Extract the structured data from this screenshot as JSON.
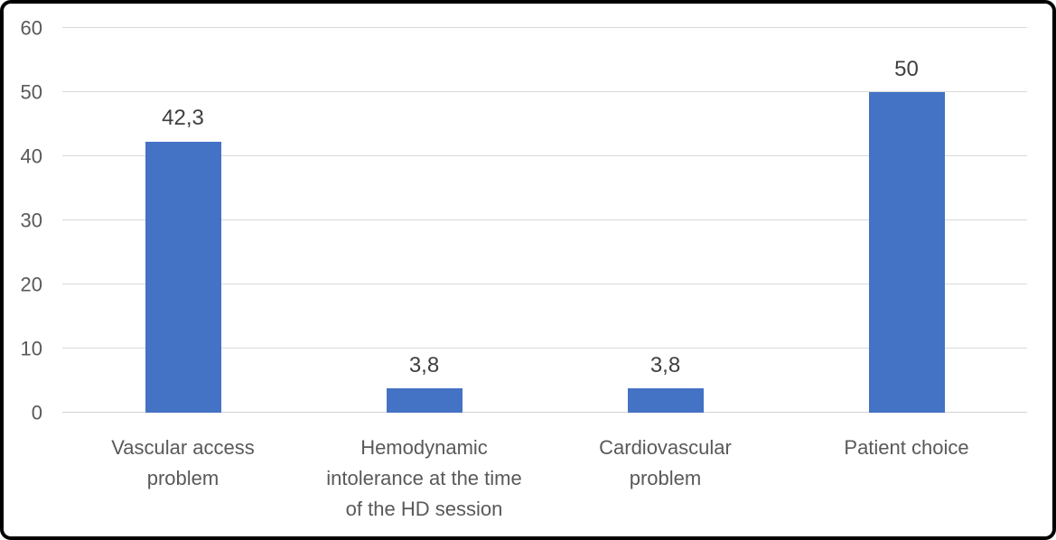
{
  "chart_data": {
    "type": "bar",
    "categories": [
      "Vascular access problem",
      "Hemodynamic intolerance at the time of the HD session",
      "Cardiovascular problem",
      "Patient choice"
    ],
    "values": [
      42.3,
      3.8,
      3.8,
      50
    ],
    "value_labels": [
      "42,3",
      "3,8",
      "3,8",
      "50"
    ],
    "x_display_labels": [
      "Vascular access\nproblem",
      "Hemodynamic\nintolerance at the time\nof the HD session",
      "Cardiovascular\nproblem",
      "Patient choice"
    ],
    "title": "",
    "xlabel": "",
    "ylabel": "",
    "ylim": [
      0,
      60
    ],
    "yticks": [
      0,
      10,
      20,
      30,
      40,
      50,
      60
    ],
    "grid": true,
    "legend": false,
    "colors": {
      "bar": "#4472C4",
      "gridline": "#D9D9D9",
      "axis_line": "#D2D2D2",
      "tick_label": "#595959",
      "category_label": "#595959",
      "data_label": "#3F3F3F",
      "frame_border": "#000000",
      "background": "#FFFFFF"
    }
  }
}
